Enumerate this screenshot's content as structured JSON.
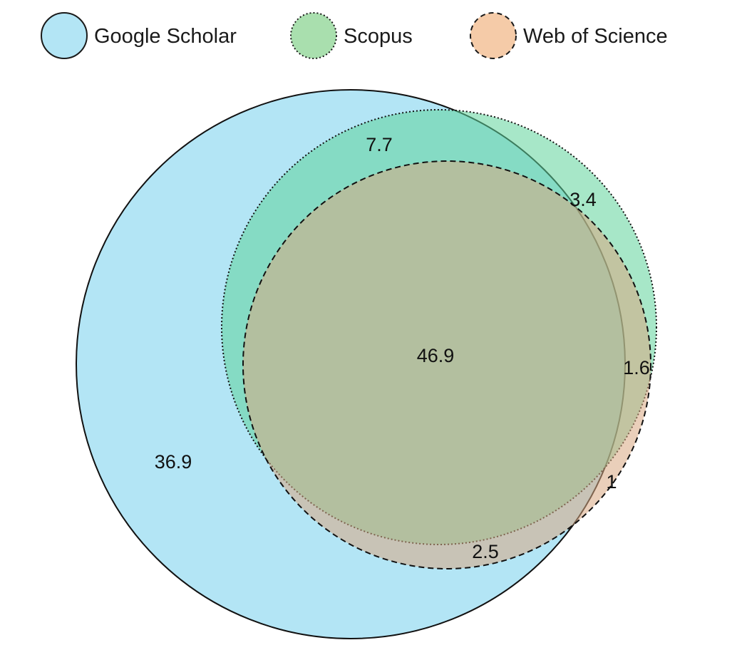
{
  "chart_data": {
    "type": "venn",
    "sets": [
      {
        "key": "gs",
        "name": "Google Scholar",
        "fill": "#b3e5f5",
        "stroke": "solid"
      },
      {
        "key": "scopus",
        "name": "Scopus",
        "fill": "#a9dfae",
        "stroke": "dotted"
      },
      {
        "key": "wos",
        "name": "Web of Science",
        "fill": "#f5cba8",
        "stroke": "dashed"
      }
    ],
    "regions": [
      {
        "key": "gs_only",
        "sets": [
          "gs"
        ],
        "value": "36.9"
      },
      {
        "key": "gs_scopus",
        "sets": [
          "gs",
          "scopus"
        ],
        "value": "7.7"
      },
      {
        "key": "scopus_only",
        "sets": [
          "scopus"
        ],
        "value": "3.4"
      },
      {
        "key": "all_three",
        "sets": [
          "gs",
          "scopus",
          "wos"
        ],
        "value": "46.9"
      },
      {
        "key": "scopus_wos",
        "sets": [
          "scopus",
          "wos"
        ],
        "value": "1.6"
      },
      {
        "key": "wos_only",
        "sets": [
          "wos"
        ],
        "value": "1"
      },
      {
        "key": "gs_wos",
        "sets": [
          "gs",
          "wos"
        ],
        "value": "2.5"
      }
    ],
    "legend_position": "top"
  }
}
